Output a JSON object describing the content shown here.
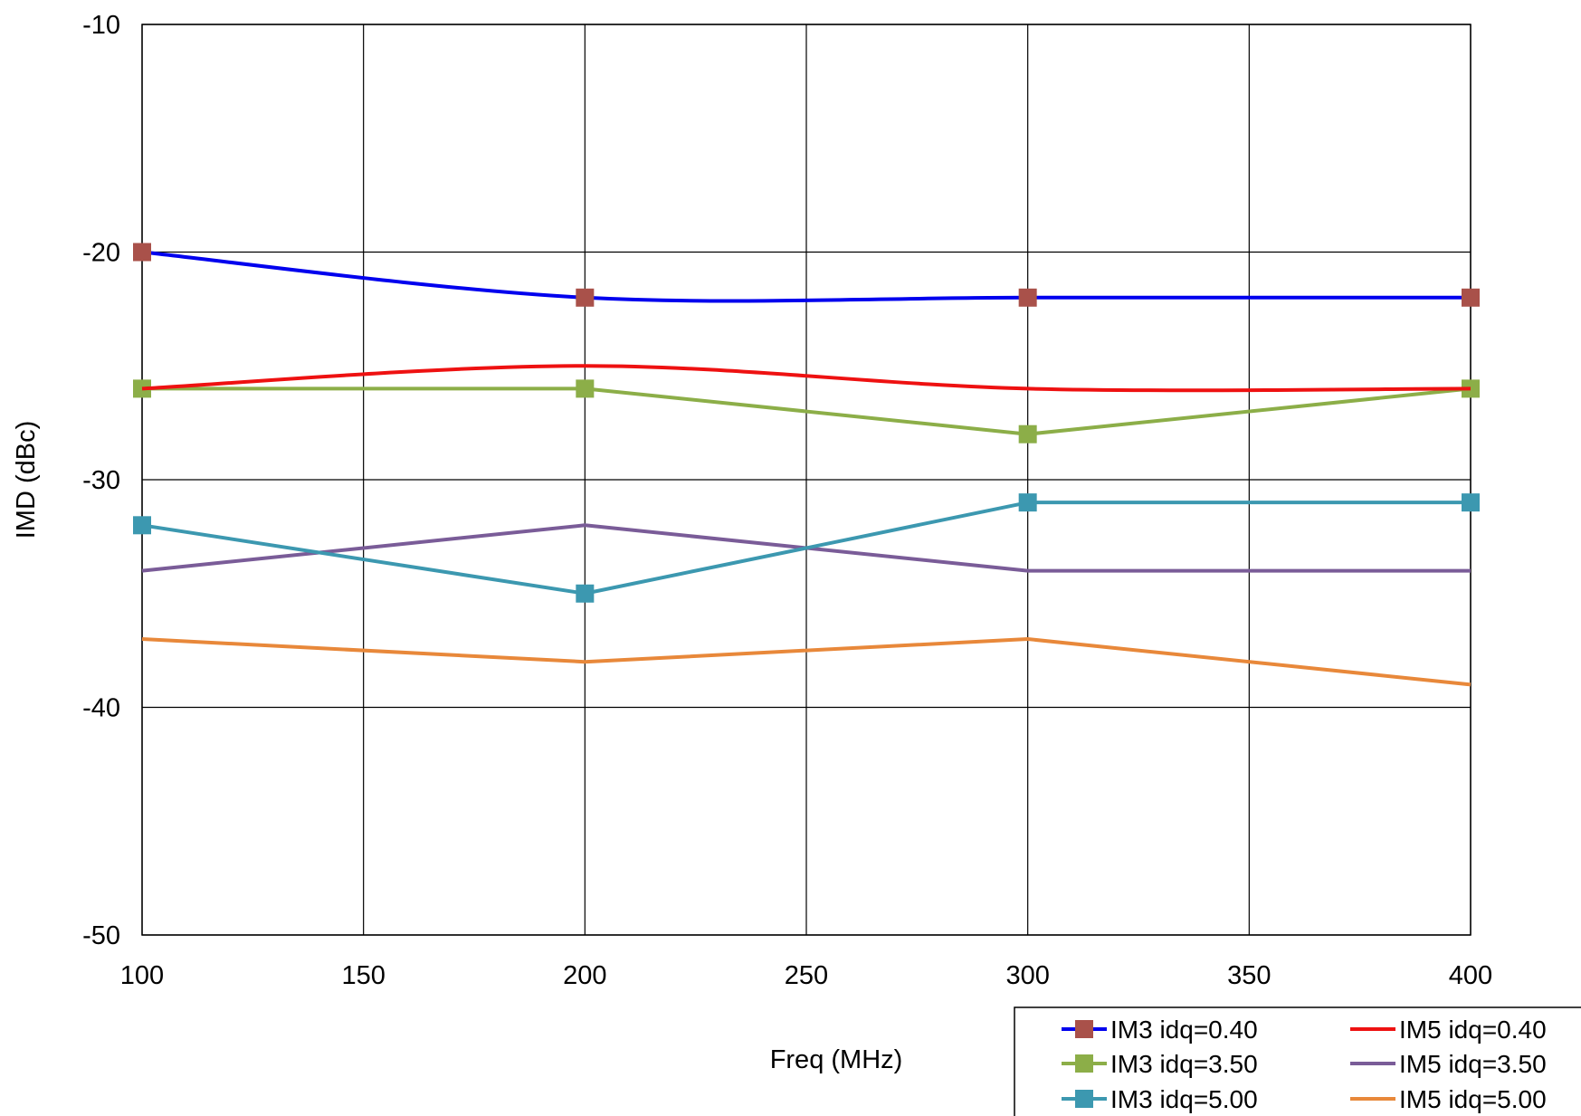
{
  "chart_data": {
    "type": "line",
    "title": "",
    "xlabel": "Freq (MHz)",
    "ylabel": "IMD (dBc)",
    "xlim": [
      100,
      400
    ],
    "ylim": [
      -50,
      -10
    ],
    "xticks": [
      100,
      150,
      200,
      250,
      300,
      350,
      400
    ],
    "yticks": [
      -50,
      -40,
      -30,
      -20,
      -10
    ],
    "grid": true,
    "legend_position": "bottom-right",
    "series": [
      {
        "name": "IM3 idq=0.40",
        "color": "#0000ee",
        "marker_color": "#a9514a",
        "marker": "square",
        "x": [
          100,
          200,
          300,
          400
        ],
        "y": [
          -20,
          -22,
          -22,
          -22
        ]
      },
      {
        "name": "IM5 idq=0.40",
        "color": "#ee1111",
        "marker": "none",
        "x": [
          100,
          200,
          300,
          400
        ],
        "y": [
          -26,
          -25,
          -26,
          -26
        ]
      },
      {
        "name": "IM3 idq=3.50",
        "color": "#8cae48",
        "marker_color": "#8cae48",
        "marker": "square",
        "x": [
          100,
          200,
          300,
          400
        ],
        "y": [
          -26,
          -26,
          -28,
          -26
        ]
      },
      {
        "name": "IM5 idq=3.50",
        "color": "#7a5c98",
        "marker": "none",
        "x": [
          100,
          200,
          300,
          400
        ],
        "y": [
          -34,
          -32,
          -34,
          -34
        ]
      },
      {
        "name": "IM3 idq=5.00",
        "color": "#3c98b0",
        "marker_color": "#3c98b0",
        "marker": "square",
        "x": [
          100,
          200,
          300,
          400
        ],
        "y": [
          -32,
          -35,
          -31,
          -31
        ]
      },
      {
        "name": "IM5 idq=5.00",
        "color": "#e8883a",
        "marker": "none",
        "x": [
          100,
          200,
          300,
          400
        ],
        "y": [
          -37,
          -38,
          -37,
          -39
        ]
      }
    ]
  }
}
